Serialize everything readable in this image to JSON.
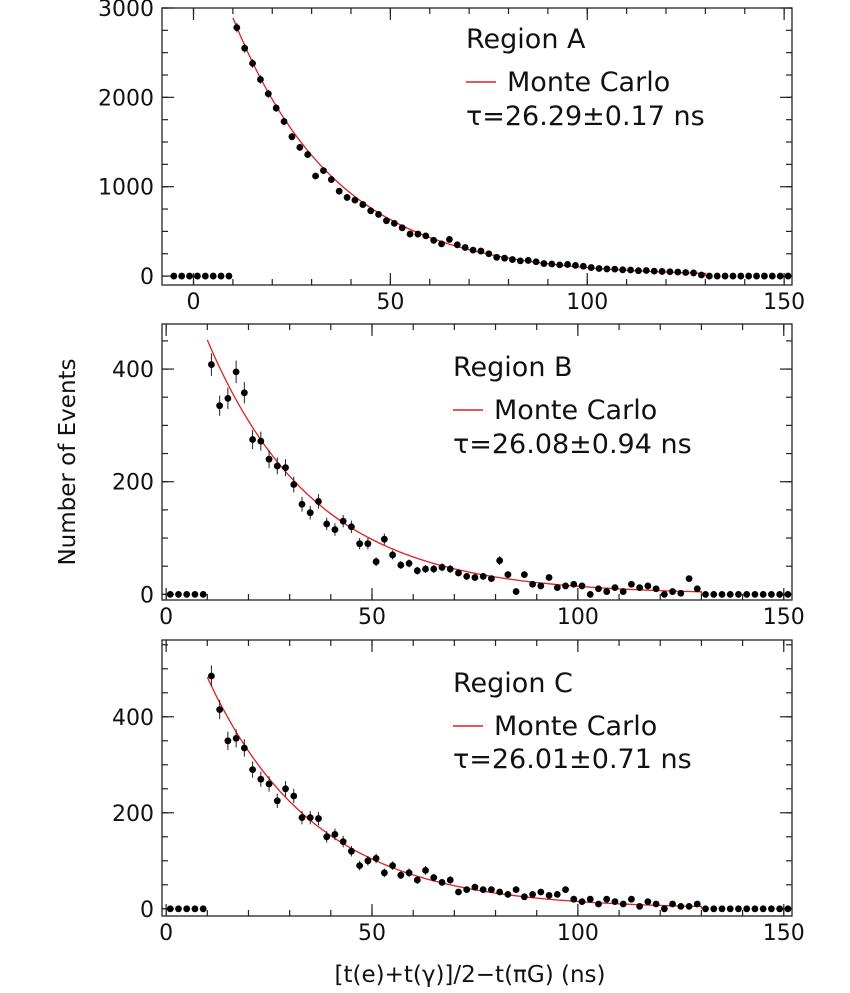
{
  "figure": {
    "ylabel": "Number of Events",
    "xlabel": "[t(e)+t(γ)]/2−t(πG) (ns)"
  },
  "chart_data": [
    {
      "type": "scatter",
      "region": "Region A",
      "legend": "Monte Carlo",
      "tau": "τ=26.29±0.17 ns",
      "series_color": "#000000",
      "fit_color": "#e02020",
      "xlim": [
        -8,
        152
      ],
      "ylim": [
        -100,
        3000
      ],
      "xticks": [
        0,
        50,
        100,
        150
      ],
      "yticks": [
        0,
        1000,
        2000,
        3000
      ],
      "yminor": 250,
      "xminor": 10,
      "tau_value": 26.29,
      "x": [
        -5,
        -3,
        -1,
        1,
        3,
        5,
        7,
        9,
        11,
        13,
        15,
        17,
        19,
        21,
        23,
        25,
        27,
        29,
        31,
        33,
        35,
        37,
        39,
        41,
        43,
        45,
        47,
        49,
        51,
        53,
        55,
        57,
        59,
        61,
        63,
        65,
        67,
        69,
        71,
        73,
        75,
        77,
        79,
        81,
        83,
        85,
        87,
        89,
        91,
        93,
        95,
        97,
        99,
        101,
        103,
        105,
        107,
        109,
        111,
        113,
        115,
        117,
        119,
        121,
        123,
        125,
        127,
        129,
        131,
        133,
        135,
        137,
        139,
        141,
        143,
        145,
        147,
        149,
        151
      ],
      "y": [
        0,
        0,
        0,
        0,
        0,
        0,
        0,
        0,
        2780,
        2550,
        2380,
        2200,
        2040,
        1880,
        1730,
        1560,
        1440,
        1360,
        1120,
        1180,
        1080,
        950,
        880,
        850,
        800,
        730,
        690,
        620,
        590,
        540,
        470,
        470,
        450,
        400,
        360,
        410,
        350,
        320,
        290,
        280,
        250,
        210,
        200,
        185,
        170,
        175,
        160,
        140,
        135,
        125,
        130,
        120,
        110,
        95,
        85,
        80,
        78,
        70,
        68,
        60,
        62,
        55,
        52,
        48,
        45,
        40,
        35,
        12,
        0,
        0,
        0,
        0,
        0,
        0,
        0,
        0,
        0,
        0,
        0
      ],
      "err": [
        0,
        0,
        0,
        0,
        0,
        0,
        0,
        0,
        53,
        50,
        49,
        47,
        45,
        43,
        42,
        40,
        38,
        37,
        33,
        34,
        33,
        31,
        30,
        29,
        28,
        27,
        26,
        25,
        24,
        23,
        22,
        22,
        21,
        20,
        19,
        20,
        19,
        18,
        17,
        17,
        16,
        15,
        14,
        14,
        13,
        13,
        13,
        12,
        12,
        11,
        11,
        11,
        10,
        10,
        9,
        9,
        9,
        8,
        8,
        8,
        8,
        7,
        7,
        7,
        7,
        6,
        6,
        3,
        0,
        0,
        0,
        0,
        0,
        0,
        0,
        0,
        0,
        0,
        0
      ]
    },
    {
      "type": "scatter",
      "region": "Region B",
      "legend": "Monte Carlo",
      "tau": "τ=26.08±0.94 ns",
      "series_color": "#000000",
      "fit_color": "#e02020",
      "xlim": [
        -1,
        152
      ],
      "ylim": [
        -10,
        480
      ],
      "xticks": [
        0,
        50,
        100,
        150
      ],
      "yticks": [
        0,
        200,
        400
      ],
      "yminor": 50,
      "xminor": 10,
      "tau_value": 26.08,
      "x": [
        1,
        3,
        5,
        7,
        9,
        11,
        13,
        15,
        17,
        19,
        21,
        23,
        25,
        27,
        29,
        31,
        33,
        35,
        37,
        39,
        41,
        43,
        45,
        47,
        49,
        51,
        53,
        55,
        57,
        59,
        61,
        63,
        65,
        67,
        69,
        71,
        73,
        75,
        77,
        79,
        81,
        83,
        85,
        87,
        89,
        91,
        93,
        95,
        97,
        99,
        101,
        103,
        105,
        107,
        109,
        111,
        113,
        115,
        117,
        119,
        121,
        123,
        125,
        127,
        129,
        131,
        133,
        135,
        137,
        139,
        141,
        143,
        145,
        147,
        149,
        151
      ],
      "y": [
        0,
        0,
        0,
        0,
        0,
        408,
        335,
        348,
        395,
        358,
        275,
        272,
        240,
        228,
        225,
        195,
        160,
        145,
        165,
        125,
        115,
        130,
        120,
        90,
        90,
        58,
        98,
        70,
        52,
        55,
        42,
        45,
        45,
        48,
        45,
        38,
        32,
        30,
        32,
        28,
        60,
        35,
        5,
        35,
        18,
        15,
        30,
        12,
        15,
        18,
        15,
        0,
        10,
        5,
        12,
        5,
        18,
        12,
        15,
        10,
        0,
        5,
        2,
        28,
        10,
        0,
        0,
        0,
        0,
        0,
        0,
        0,
        0,
        0,
        0,
        0
      ],
      "err": [
        0,
        0,
        0,
        0,
        0,
        20,
        18,
        19,
        20,
        19,
        17,
        17,
        16,
        15,
        15,
        14,
        13,
        12,
        13,
        11,
        11,
        11,
        11,
        10,
        10,
        8,
        10,
        8,
        7,
        7,
        7,
        7,
        7,
        7,
        7,
        6,
        6,
        6,
        6,
        5,
        8,
        6,
        2,
        6,
        4,
        4,
        5,
        3,
        4,
        4,
        4,
        0,
        3,
        2,
        3,
        2,
        4,
        3,
        4,
        3,
        0,
        2,
        1,
        5,
        3,
        0,
        0,
        0,
        0,
        0,
        0,
        0,
        0,
        0,
        0,
        0
      ]
    },
    {
      "type": "scatter",
      "region": "Region C",
      "legend": "Monte Carlo",
      "tau": "τ=26.01±0.71 ns",
      "series_color": "#000000",
      "fit_color": "#e02020",
      "xlim": [
        -1,
        152
      ],
      "ylim": [
        -15,
        560
      ],
      "xticks": [
        0,
        50,
        100,
        150
      ],
      "yticks": [
        0,
        200,
        400
      ],
      "yminor": 50,
      "xminor": 10,
      "tau_value": 26.01,
      "x": [
        1,
        3,
        5,
        7,
        9,
        11,
        13,
        15,
        17,
        19,
        21,
        23,
        25,
        27,
        29,
        31,
        33,
        35,
        37,
        39,
        41,
        43,
        45,
        47,
        49,
        51,
        53,
        55,
        57,
        59,
        61,
        63,
        65,
        67,
        69,
        71,
        73,
        75,
        77,
        79,
        81,
        83,
        85,
        87,
        89,
        91,
        93,
        95,
        97,
        99,
        101,
        103,
        105,
        107,
        109,
        111,
        113,
        115,
        117,
        119,
        121,
        123,
        125,
        127,
        129,
        131,
        133,
        135,
        137,
        139,
        141,
        143,
        145,
        147,
        149,
        151
      ],
      "y": [
        0,
        0,
        0,
        0,
        0,
        485,
        415,
        350,
        355,
        335,
        290,
        270,
        260,
        225,
        250,
        235,
        190,
        190,
        188,
        150,
        155,
        140,
        120,
        90,
        100,
        105,
        75,
        90,
        70,
        75,
        60,
        80,
        65,
        55,
        60,
        35,
        40,
        45,
        40,
        40,
        35,
        30,
        40,
        25,
        30,
        35,
        28,
        30,
        40,
        20,
        15,
        20,
        10,
        20,
        15,
        10,
        20,
        5,
        15,
        10,
        0,
        10,
        5,
        5,
        10,
        0,
        0,
        0,
        0,
        0,
        0,
        0,
        0,
        0,
        0,
        0
      ],
      "err": [
        0,
        0,
        0,
        0,
        0,
        22,
        20,
        19,
        19,
        18,
        17,
        16,
        16,
        15,
        16,
        15,
        14,
        14,
        14,
        12,
        12,
        12,
        11,
        10,
        10,
        10,
        9,
        9,
        8,
        9,
        8,
        9,
        8,
        7,
        8,
        6,
        6,
        7,
        6,
        6,
        6,
        5,
        6,
        5,
        5,
        6,
        5,
        5,
        6,
        4,
        4,
        4,
        3,
        4,
        4,
        3,
        4,
        2,
        4,
        3,
        0,
        3,
        2,
        2,
        3,
        0,
        0,
        0,
        0,
        0,
        0,
        0,
        0,
        0,
        0,
        0
      ]
    }
  ]
}
